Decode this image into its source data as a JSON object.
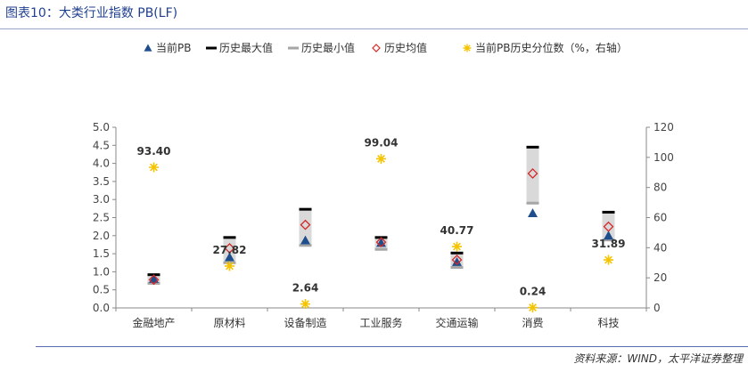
{
  "header": {
    "title": "图表10：大类行业指数 PB(LF)"
  },
  "footer": {
    "source": "资料来源：WIND，太平洋证券整理"
  },
  "colors": {
    "current_pb": "#1f4e8c",
    "hist_max": "#000000",
    "hist_min": "#a6a6a6",
    "hist_mean": "#d62728",
    "percentile": "#f5c400",
    "range_bar": "#d9d9d9"
  },
  "chart_data": {
    "type": "scatter",
    "categories": [
      "金融地产",
      "原材料",
      "设备制造",
      "工业服务",
      "交通运输",
      "消费",
      "科技"
    ],
    "series": [
      {
        "name": "当前PB",
        "marker": "triangle",
        "values": [
          0.8,
          1.4,
          1.87,
          1.8,
          1.27,
          2.62,
          2.0
        ]
      },
      {
        "name": "历史最大值",
        "marker": "dash",
        "values": [
          0.92,
          1.95,
          2.73,
          1.95,
          1.52,
          4.45,
          2.65
        ]
      },
      {
        "name": "历史最小值",
        "marker": "dash",
        "values": [
          0.68,
          1.25,
          1.73,
          1.62,
          1.12,
          2.9,
          1.88
        ]
      },
      {
        "name": "历史均值",
        "marker": "diamond",
        "values": [
          0.78,
          1.65,
          2.3,
          1.82,
          1.33,
          3.72,
          2.25
        ]
      },
      {
        "name": "当前PB历史分位数（%，右轴）",
        "marker": "star",
        "axis": "right",
        "values": [
          93.4,
          27.82,
          2.64,
          99.04,
          40.77,
          0.24,
          31.89
        ]
      }
    ],
    "data_labels": [
      "93.40",
      "27.82",
      "2.64",
      "99.04",
      "40.77",
      "0.24",
      "31.89"
    ],
    "ylim": [
      0,
      5
    ],
    "yticks": [
      "0.0",
      "0.5",
      "1.0",
      "1.5",
      "2.0",
      "2.5",
      "3.0",
      "3.5",
      "4.0",
      "4.5",
      "5.0"
    ],
    "y2lim": [
      0,
      120
    ],
    "y2ticks": [
      "0",
      "20",
      "40",
      "60",
      "80",
      "100",
      "120"
    ],
    "legend_position": "top",
    "grid": false
  }
}
